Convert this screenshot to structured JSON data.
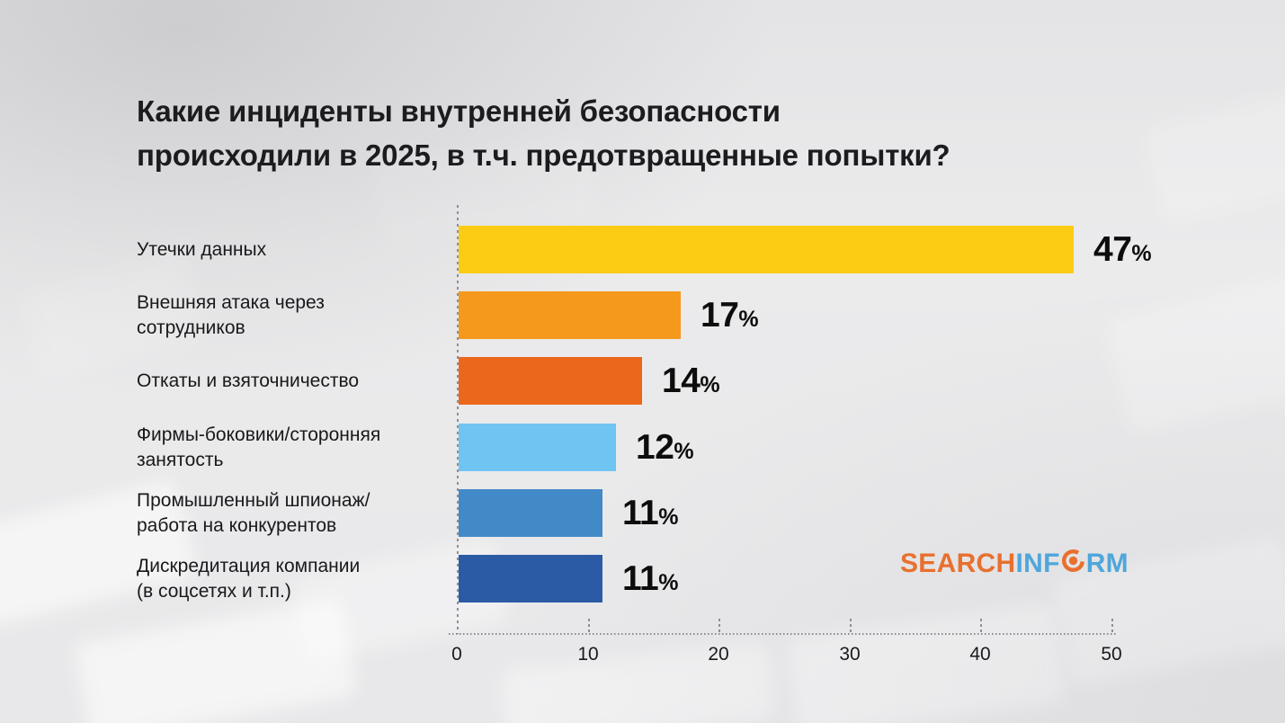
{
  "title": {
    "line1": "Какие инциденты внутренней безопасности",
    "line2": "происходили в 2025, в т.ч. предотвращенные попытки?"
  },
  "chart_data": {
    "type": "bar",
    "orientation": "horizontal",
    "title": "Какие инциденты внутренней безопасности происходили в 2025, в т.ч. предотвращенные попытки?",
    "categories": [
      "Утечки данных",
      "Внешняя атака через\nсотрудников",
      "Откаты и взяточничество",
      "Фирмы-боковики/сторонняя\nзанятость",
      "Промышленный шпионаж/\nработа на конкурентов",
      "Дискредитация компании\n(в соцсетях и т.п.)"
    ],
    "values": [
      47,
      17,
      14,
      12,
      11,
      11
    ],
    "unit": "%",
    "bar_colors": [
      "#fccb14",
      "#f5991d",
      "#ea671b",
      "#6fc4f1",
      "#4289c8",
      "#2c5ba6"
    ],
    "xlim": [
      0,
      50
    ],
    "x_ticks": [
      "0",
      "10",
      "20",
      "30",
      "40",
      "50"
    ],
    "grid": "dashed zero-line, dotted baseline, short dashed tick marks",
    "legend": "none",
    "value_label_color": "#0d0d0d",
    "axis_line_color": "#8f8f94"
  },
  "logo": {
    "text": "SEARCHINFORM",
    "part_search": "SEARCH",
    "part_inf": "INF",
    "part_rm": "RM",
    "orange": "#e8702e",
    "blue": "#4fa6da"
  }
}
